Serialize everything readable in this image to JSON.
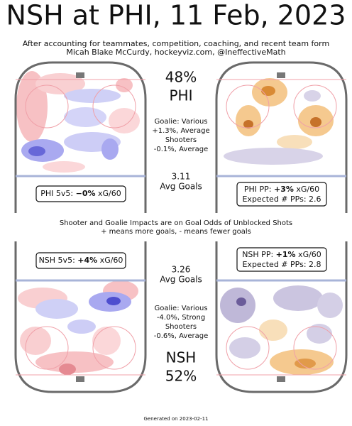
{
  "header": {
    "title": "NSH at PHI, 11 Feb, 2023",
    "subtitle": [
      "After accounting for teammates, competition, coaching, and recent team form",
      "Micah Blake McCurdy, hockeyviz.com, @IneffectiveMath"
    ]
  },
  "panels": {
    "phi": {
      "share": "48%",
      "team": "PHI",
      "goalie_label": "Goalie: Various",
      "goalie_impact": "+1.3%, Average",
      "shooters_label": "Shooters",
      "shooters_impact": "-0.1%, Average",
      "avg_goals": "3.11",
      "avg_goals_label": "Avg Goals",
      "ev_box": {
        "prefix": "PHI 5v5: ",
        "value": "−0%",
        "suffix": " xG/60"
      },
      "pp_box": {
        "prefix": "PHI PP: ",
        "value": "+3%",
        "suffix": " xG/60",
        "expected": "Expected # PPs: 2.6"
      }
    },
    "nsh": {
      "share": "52%",
      "team": "NSH",
      "goalie_label": "Goalie: Various",
      "goalie_impact": "-4.0%, Strong",
      "shooters_label": "Shooters",
      "shooters_impact": "-0.6%, Average",
      "avg_goals": "3.26",
      "avg_goals_label": "Avg Goals",
      "ev_box": {
        "prefix": "NSH 5v5: ",
        "value": "+4%",
        "suffix": " xG/60"
      },
      "pp_box": {
        "prefix": "NSH PP: ",
        "value": "+1%",
        "suffix": " xG/60",
        "expected": "Expected # PPs: 2.8"
      }
    }
  },
  "note": [
    "Shooter and Goalie Impacts are on Goal Odds of Unblocked Shots",
    "+ means more goals, - means fewer goals"
  ],
  "footer": "Generated on 2023-02-11"
}
